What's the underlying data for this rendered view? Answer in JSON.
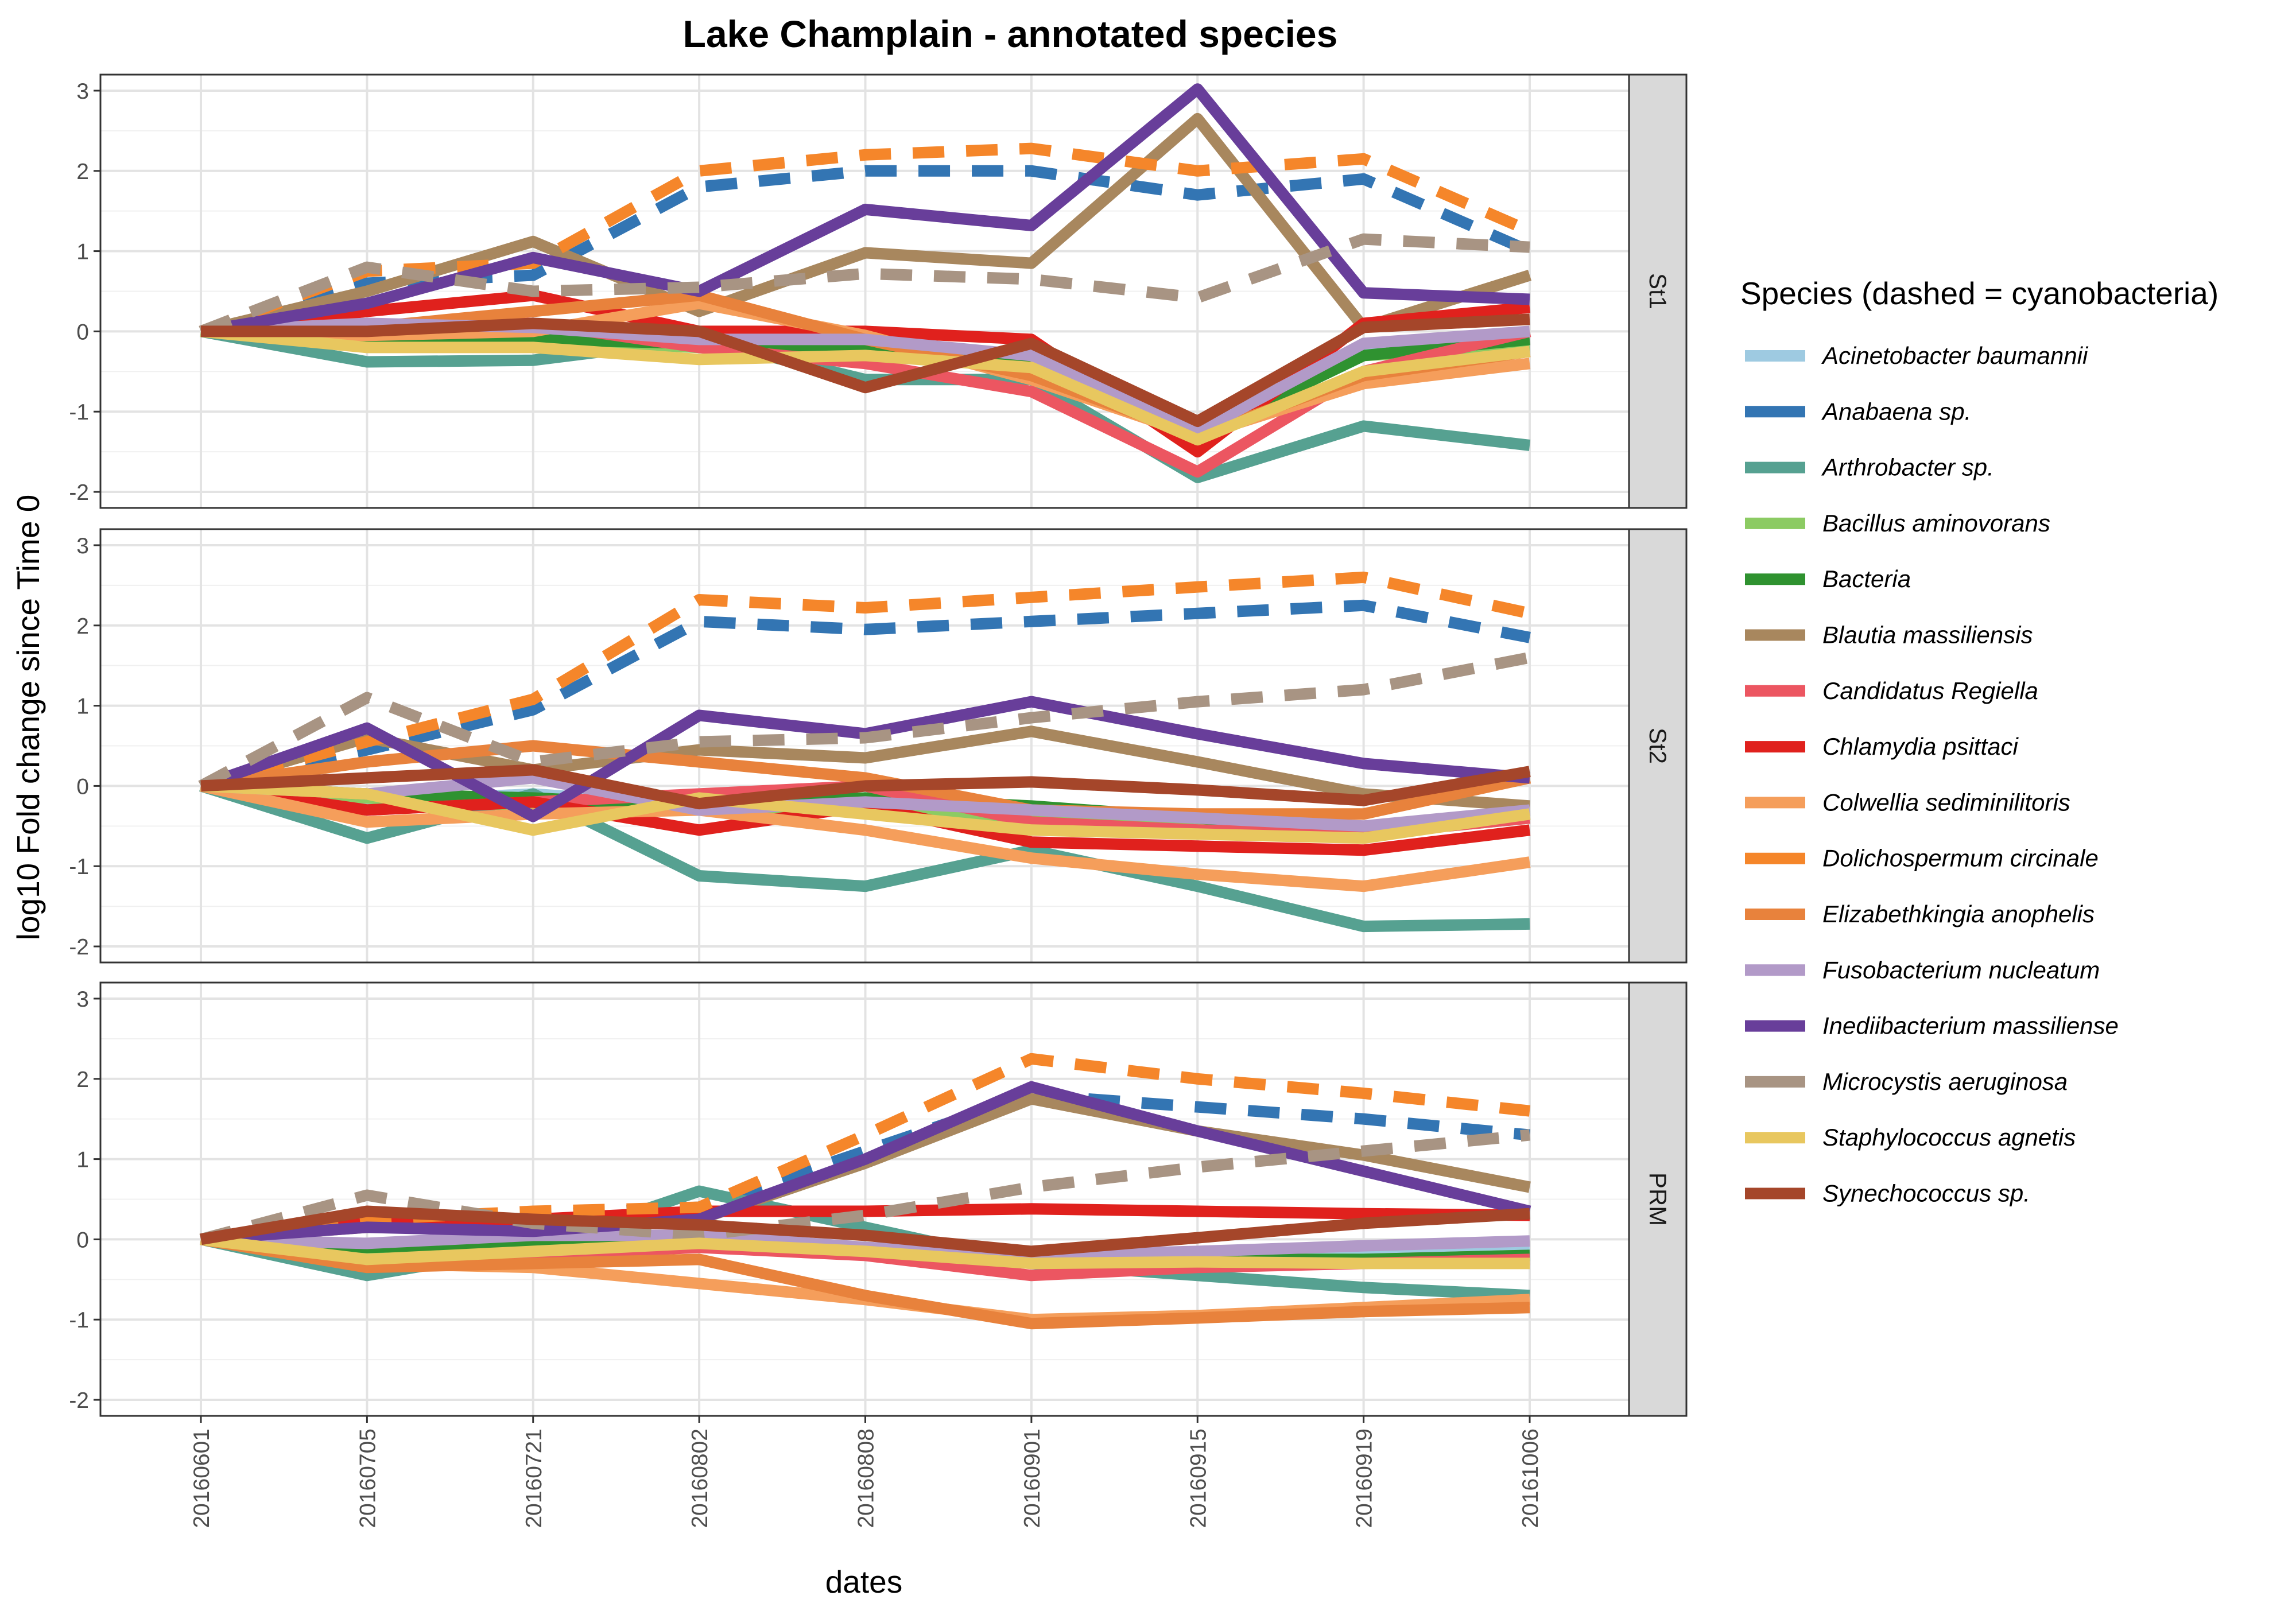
{
  "chart_data": {
    "type": "line",
    "title": "Lake Champlain - annotated species",
    "xlabel": "dates",
    "ylabel": "log10 Fold change since Time 0",
    "x": [
      "20160601",
      "20160705",
      "20160721",
      "20160802",
      "20160808",
      "20160901",
      "20160915",
      "20160919",
      "20161006"
    ],
    "ylim": [
      -2,
      3
    ],
    "yticks": [
      "-2",
      "-1",
      "0",
      "1",
      "2",
      "3"
    ],
    "grid": true,
    "legend_title": "Species (dashed = cyanobacteria)",
    "legend_position": "right",
    "facets": [
      "St1",
      "St2",
      "PRM"
    ],
    "series": [
      {
        "name": "Acinetobacter baumannii",
        "color": "#9ECAE1",
        "dashed": false,
        "values": {
          "St1": [
            0,
            -0.1,
            -0.05,
            -0.15,
            -0.2,
            -0.35,
            -1.3,
            -0.25,
            -0.1
          ],
          "St2": [
            0,
            -0.2,
            -0.1,
            -0.25,
            -0.2,
            -0.3,
            -0.45,
            -0.55,
            -0.3
          ],
          "PRM": [
            0,
            -0.15,
            -0.1,
            -0.1,
            -0.15,
            -0.2,
            -0.2,
            -0.2,
            -0.15
          ]
        }
      },
      {
        "name": "Anabaena sp.",
        "color": "#3375B3",
        "dashed": true,
        "values": {
          "St1": [
            0,
            0.6,
            0.7,
            1.8,
            2.0,
            2.0,
            1.7,
            1.9,
            1.0
          ],
          "St2": [
            0,
            0.45,
            0.95,
            2.05,
            1.95,
            2.05,
            2.15,
            2.25,
            1.85
          ],
          "PRM": [
            0,
            0.25,
            0.3,
            0.4,
            1.1,
            1.8,
            1.65,
            1.5,
            1.3
          ]
        }
      },
      {
        "name": "Arthrobacter sp.",
        "color": "#56A191",
        "dashed": false,
        "values": {
          "St1": [
            0,
            -0.38,
            -0.36,
            -0.1,
            -0.6,
            -0.6,
            -1.82,
            -1.18,
            -1.42
          ],
          "St2": [
            0,
            -0.65,
            -0.1,
            -1.12,
            -1.25,
            -0.8,
            -1.25,
            -1.75,
            -1.72
          ],
          "PRM": [
            0,
            -0.45,
            -0.1,
            0.6,
            0.15,
            -0.3,
            -0.45,
            -0.6,
            -0.7
          ]
        }
      },
      {
        "name": "Bacillus aminovorans",
        "color": "#8CCB63",
        "dashed": false,
        "values": {
          "St1": [
            0,
            -0.15,
            -0.1,
            -0.2,
            -0.25,
            -0.4,
            -1.3,
            -0.3,
            -0.2
          ],
          "St2": [
            0,
            -0.15,
            -0.25,
            -0.3,
            -0.3,
            -0.4,
            -0.5,
            -0.6,
            -0.4
          ],
          "PRM": [
            0,
            -0.15,
            -0.1,
            -0.05,
            -0.15,
            -0.25,
            -0.25,
            -0.25,
            -0.2
          ]
        }
      },
      {
        "name": "Bacteria",
        "color": "#2F9230",
        "dashed": false,
        "values": {
          "St1": [
            0,
            -0.1,
            -0.1,
            -0.15,
            -0.2,
            -0.4,
            -1.3,
            -0.3,
            -0.1
          ],
          "St2": [
            0,
            -0.1,
            -0.15,
            -0.25,
            -0.15,
            -0.25,
            -0.4,
            -0.55,
            -0.35
          ],
          "PRM": [
            0,
            -0.1,
            -0.05,
            0.0,
            -0.1,
            -0.25,
            -0.25,
            -0.25,
            -0.2
          ]
        }
      },
      {
        "name": "Blautia massiliensis",
        "color": "#A8875E",
        "dashed": false,
        "values": {
          "St1": [
            0,
            0.5,
            1.12,
            0.25,
            0.98,
            0.85,
            2.65,
            0.05,
            0.7
          ],
          "St2": [
            0,
            0.6,
            0.2,
            0.45,
            0.35,
            0.68,
            0.3,
            -0.1,
            -0.25
          ],
          "PRM": [
            0,
            0.15,
            0.15,
            0.25,
            0.95,
            1.75,
            1.35,
            1.05,
            0.65
          ]
        }
      },
      {
        "name": "Candidatus Regiella",
        "color": "#EC5661",
        "dashed": false,
        "values": {
          "St1": [
            0,
            0.05,
            0.1,
            -0.2,
            -0.4,
            -0.75,
            -1.75,
            -0.5,
            0.0
          ],
          "St2": [
            0,
            -0.3,
            -0.2,
            -0.1,
            0.0,
            -0.45,
            -0.55,
            -0.6,
            -0.4
          ],
          "PRM": [
            0,
            -0.3,
            -0.2,
            -0.1,
            -0.2,
            -0.45,
            -0.35,
            -0.3,
            -0.25
          ]
        }
      },
      {
        "name": "Chlamydia psittaci",
        "color": "#E0211D",
        "dashed": false,
        "values": {
          "St1": [
            0,
            0.25,
            0.45,
            0.0,
            0.0,
            -0.1,
            -1.5,
            0.1,
            0.3
          ],
          "St2": [
            0,
            -0.3,
            -0.2,
            -0.55,
            -0.25,
            -0.7,
            -0.75,
            -0.8,
            -0.55
          ],
          "PRM": [
            0,
            0.2,
            0.25,
            0.35,
            0.35,
            0.38,
            0.35,
            0.32,
            0.3
          ]
        }
      },
      {
        "name": "Colwellia sediminilitoris",
        "color": "#F59E5B",
        "dashed": false,
        "values": {
          "St1": [
            0,
            -0.05,
            0.0,
            0.35,
            -0.05,
            -0.6,
            -1.3,
            -0.65,
            -0.4
          ],
          "St2": [
            0,
            -0.45,
            -0.35,
            -0.3,
            -0.55,
            -0.9,
            -1.1,
            -1.25,
            -0.95
          ],
          "PRM": [
            0,
            -0.3,
            -0.35,
            -0.55,
            -0.75,
            -1.0,
            -0.95,
            -0.85,
            -0.75
          ]
        }
      },
      {
        "name": "Dolichospermum circinale",
        "color": "#F5862A",
        "dashed": true,
        "values": {
          "St1": [
            0,
            0.75,
            0.85,
            2.0,
            2.2,
            2.28,
            2.0,
            2.15,
            1.25
          ],
          "St2": [
            0,
            0.55,
            1.08,
            2.32,
            2.22,
            2.35,
            2.48,
            2.6,
            2.15
          ],
          "PRM": [
            0,
            0.25,
            0.35,
            0.4,
            1.3,
            2.25,
            2.0,
            1.82,
            1.6
          ]
        }
      },
      {
        "name": "Elizabethkingia anophelis",
        "color": "#E8823C",
        "dashed": false,
        "values": {
          "St1": [
            0,
            0.05,
            0.25,
            0.45,
            -0.1,
            -0.55,
            -1.3,
            -0.55,
            -0.25
          ],
          "St2": [
            0,
            0.3,
            0.5,
            0.3,
            0.1,
            -0.3,
            -0.35,
            -0.35,
            0.1
          ],
          "PRM": [
            0,
            -0.35,
            -0.3,
            -0.25,
            -0.7,
            -1.05,
            -0.98,
            -0.9,
            -0.85
          ]
        }
      },
      {
        "name": "Fusobacterium nucleatum",
        "color": "#B29AC8",
        "dashed": false,
        "values": {
          "St1": [
            0,
            0.1,
            0.05,
            -0.1,
            -0.1,
            -0.3,
            -1.25,
            -0.15,
            0.0
          ],
          "St2": [
            0,
            -0.1,
            0.1,
            -0.3,
            -0.2,
            -0.3,
            -0.4,
            -0.5,
            -0.3
          ],
          "PRM": [
            0,
            -0.05,
            0.05,
            0.05,
            -0.1,
            -0.2,
            -0.15,
            -0.08,
            -0.02
          ]
        }
      },
      {
        "name": "Inediibacterium massiliense",
        "color": "#683E9A",
        "dashed": false,
        "values": {
          "St1": [
            0,
            0.35,
            0.92,
            0.5,
            1.52,
            1.32,
            3.02,
            0.48,
            0.4
          ],
          "St2": [
            0,
            0.72,
            -0.38,
            0.88,
            0.65,
            1.05,
            0.65,
            0.28,
            0.1
          ],
          "PRM": [
            0,
            0.15,
            0.1,
            0.25,
            1.0,
            1.9,
            1.35,
            0.85,
            0.35
          ]
        }
      },
      {
        "name": "Microcystis aeruginosa",
        "color": "#A89483",
        "dashed": true,
        "values": {
          "St1": [
            0,
            0.8,
            0.5,
            0.55,
            0.72,
            0.65,
            0.42,
            1.15,
            1.05
          ],
          "St2": [
            0,
            1.1,
            0.3,
            0.55,
            0.6,
            0.85,
            1.05,
            1.2,
            1.6
          ],
          "PRM": [
            0,
            0.55,
            0.2,
            0.05,
            0.3,
            0.65,
            0.9,
            1.1,
            1.3
          ]
        }
      },
      {
        "name": "Staphylococcus agnetis",
        "color": "#E8C75F",
        "dashed": false,
        "values": {
          "St1": [
            0,
            -0.2,
            -0.2,
            -0.35,
            -0.3,
            -0.45,
            -1.35,
            -0.5,
            -0.25
          ],
          "St2": [
            0,
            -0.1,
            -0.55,
            -0.15,
            -0.35,
            -0.55,
            -0.6,
            -0.65,
            -0.35
          ],
          "PRM": [
            0,
            -0.25,
            -0.15,
            -0.05,
            -0.15,
            -0.3,
            -0.28,
            -0.3,
            -0.3
          ]
        }
      },
      {
        "name": "Synechococcus sp.",
        "color": "#A5462A",
        "dashed": false,
        "values": {
          "St1": [
            0,
            0.0,
            0.1,
            0.0,
            -0.7,
            -0.15,
            -1.12,
            0.05,
            0.15
          ],
          "St2": [
            0,
            0.1,
            0.2,
            -0.22,
            0.0,
            0.05,
            -0.05,
            -0.18,
            0.18
          ],
          "PRM": [
            0,
            0.35,
            0.25,
            0.18,
            0.05,
            -0.15,
            0.02,
            0.2,
            0.32
          ]
        }
      }
    ]
  }
}
